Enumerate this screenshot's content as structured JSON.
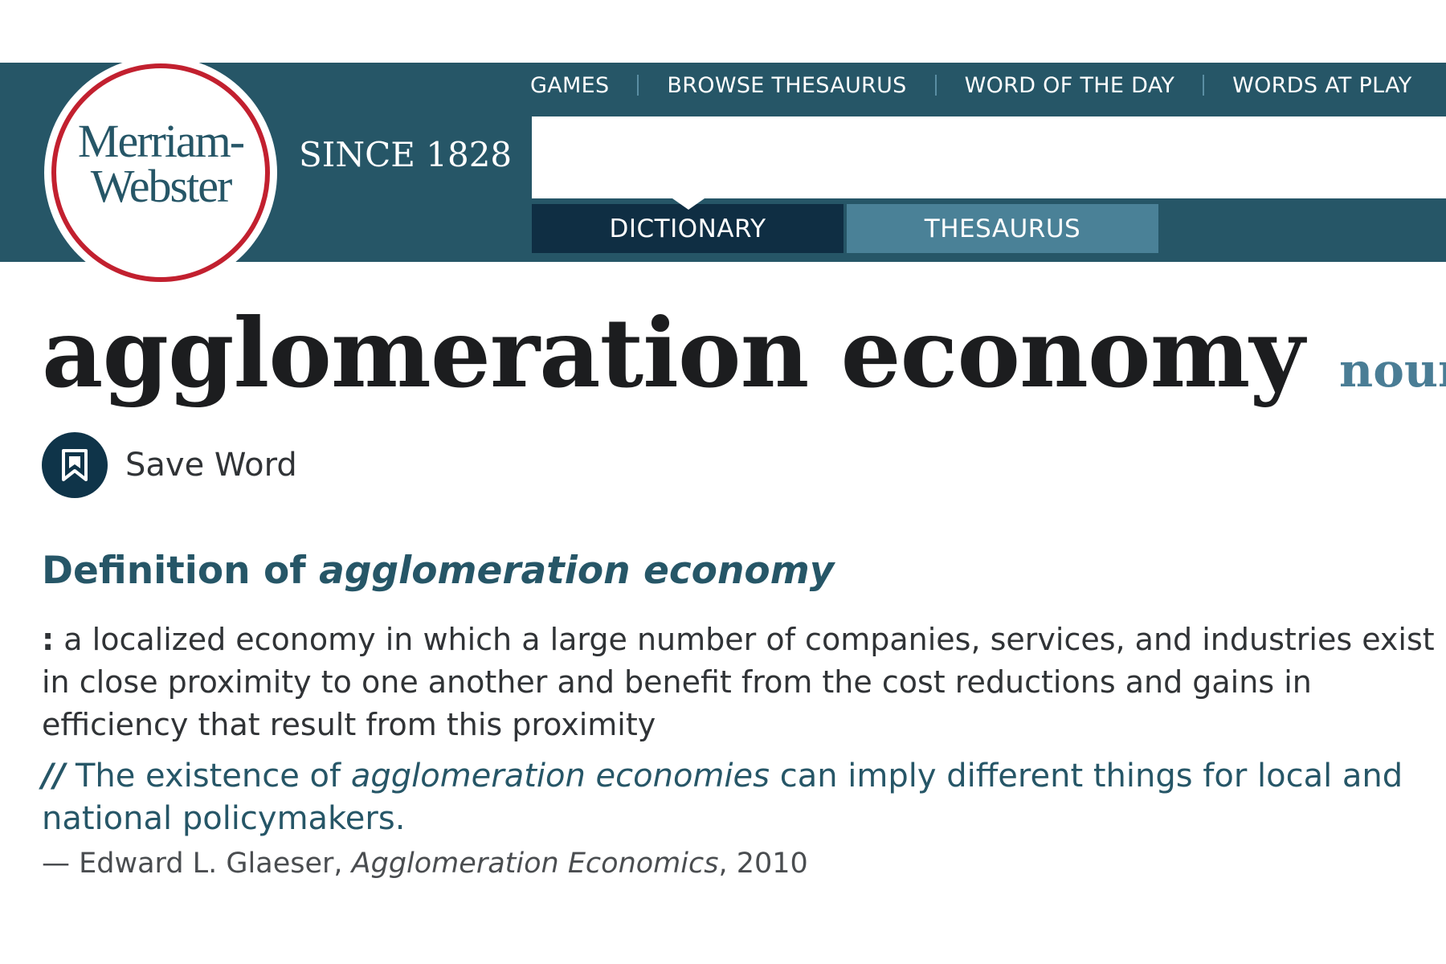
{
  "brand": {
    "logo_line1": "Merriam-",
    "logo_line2": "Webster",
    "since": "SINCE 1828"
  },
  "top_nav": {
    "items": [
      {
        "label": "GAMES"
      },
      {
        "label": "BROWSE THESAURUS"
      },
      {
        "label": "WORD OF THE DAY"
      },
      {
        "label": "WORDS AT PLAY"
      }
    ]
  },
  "search": {
    "value": "",
    "tabs": [
      {
        "label": "DICTIONARY",
        "active": true
      },
      {
        "label": "THESAURUS",
        "active": false
      }
    ]
  },
  "entry": {
    "headword": "agglomeration economy",
    "part_of_speech": "noun",
    "save_label": "Save Word",
    "definition_heading_prefix": "Definition of",
    "definition_heading_term": "agglomeration economy",
    "definition_colon": ":",
    "definition_text": "a localized economy in which a large number of companies, services, and industries exist in close proximity to one another and benefit from the cost reductions and gains in efficiency that result from this proximity",
    "example": {
      "marker": "//",
      "before": "The existence of",
      "emphasis": "agglomeration economies",
      "after": "can imply different things for local and national policymakers."
    },
    "attribution": {
      "dash": "—",
      "author": "Edward L. Glaeser,",
      "work": "Agglomeration Economics",
      "year": ", 2010"
    }
  },
  "colors": {
    "header_bg": "#265667",
    "active_tab": "#0f2e43",
    "inactive_tab": "#4a8197",
    "logo_ring": "#c2202f",
    "accent_text": "#265667"
  },
  "icons": {
    "save": "bookmark-icon",
    "caret": "caret-down-icon"
  }
}
